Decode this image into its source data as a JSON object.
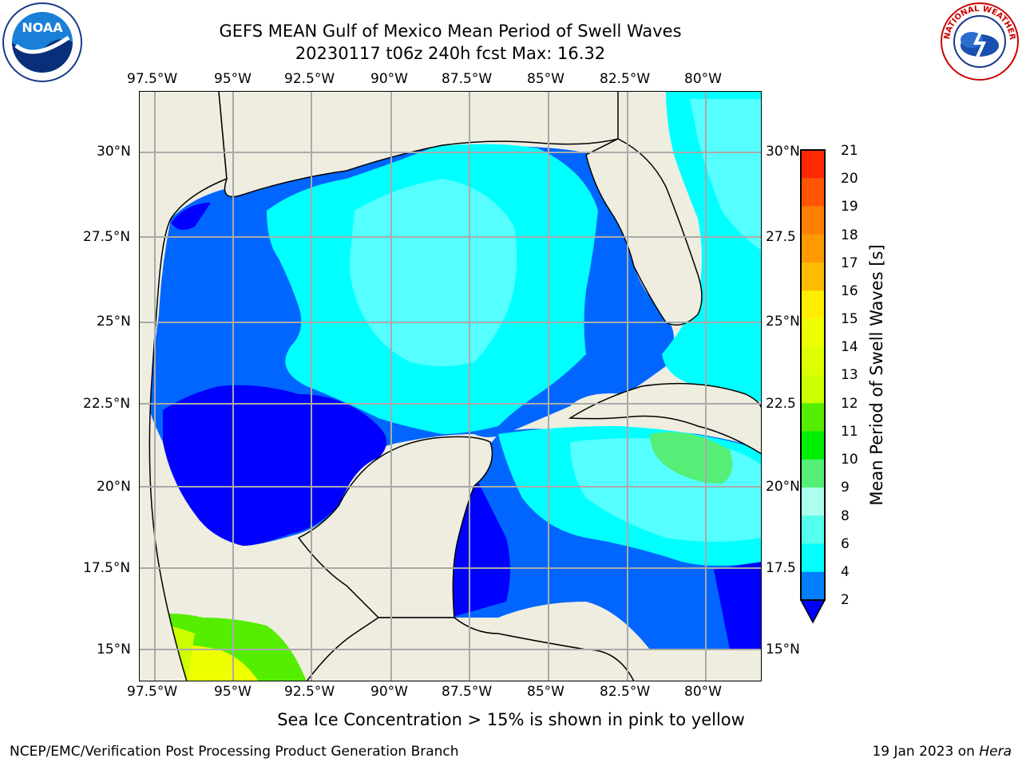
{
  "title": {
    "line1": "GEFS MEAN Gulf of Mexico Mean Period of Swell Waves",
    "line2": "20230117 t06z 240h fcst   Max: 16.32"
  },
  "axes": {
    "lon_labels": [
      "97.5°W",
      "95°W",
      "92.5°W",
      "90°W",
      "87.5°W",
      "85°W",
      "82.5°W",
      "80°W"
    ],
    "lat_labels_left": [
      "30°N",
      "27.5°N",
      "25°N",
      "22.5°N",
      "20°N",
      "17.5°N",
      "15°N"
    ],
    "lat_labels_right": [
      "30°N",
      "27.5",
      "25°N",
      "22.5",
      "20°N",
      "17.5",
      "15°N"
    ],
    "lon_range": [
      -98,
      -78.2
    ],
    "lat_range": [
      14,
      31.6
    ]
  },
  "colorbar": {
    "title": "Mean Period of Swell Waves [s]",
    "levels": [
      "21",
      "20",
      "19",
      "18",
      "17",
      "16",
      "15",
      "14",
      "13",
      "12",
      "11",
      "10",
      "9",
      "8",
      "6",
      "4",
      "2"
    ],
    "colors": [
      "#ff0000",
      "#ff2a00",
      "#ff5500",
      "#ff7f00",
      "#ff9900",
      "#ffbb00",
      "#ffee00",
      "#eeff00",
      "#ddff00",
      "#ccff00",
      "#55ee00",
      "#00ee00",
      "#55ee77",
      "#aaffee",
      "#55ffee",
      "#00ffff",
      "#007fff"
    ],
    "under_color": "#0000ff"
  },
  "footnote": "Sea Ice Concentration > 15% is shown in pink to yellow",
  "credit": "NCEP/EMC/Verification Post Processing Product Generation Branch",
  "date": "19 Jan 2023 on ",
  "machine": "Hera",
  "logos": {
    "left": "NOAA",
    "right": "NATIONAL WEATHER SERVICE"
  },
  "colors": {
    "land": "#eeede0",
    "grid": "#aaaaaa",
    "deep_blue": "#0000ff",
    "mid_blue": "#0066ff",
    "light_cyan": "#55ffff",
    "cyan": "#00ffff",
    "green": "#55ee77"
  }
}
